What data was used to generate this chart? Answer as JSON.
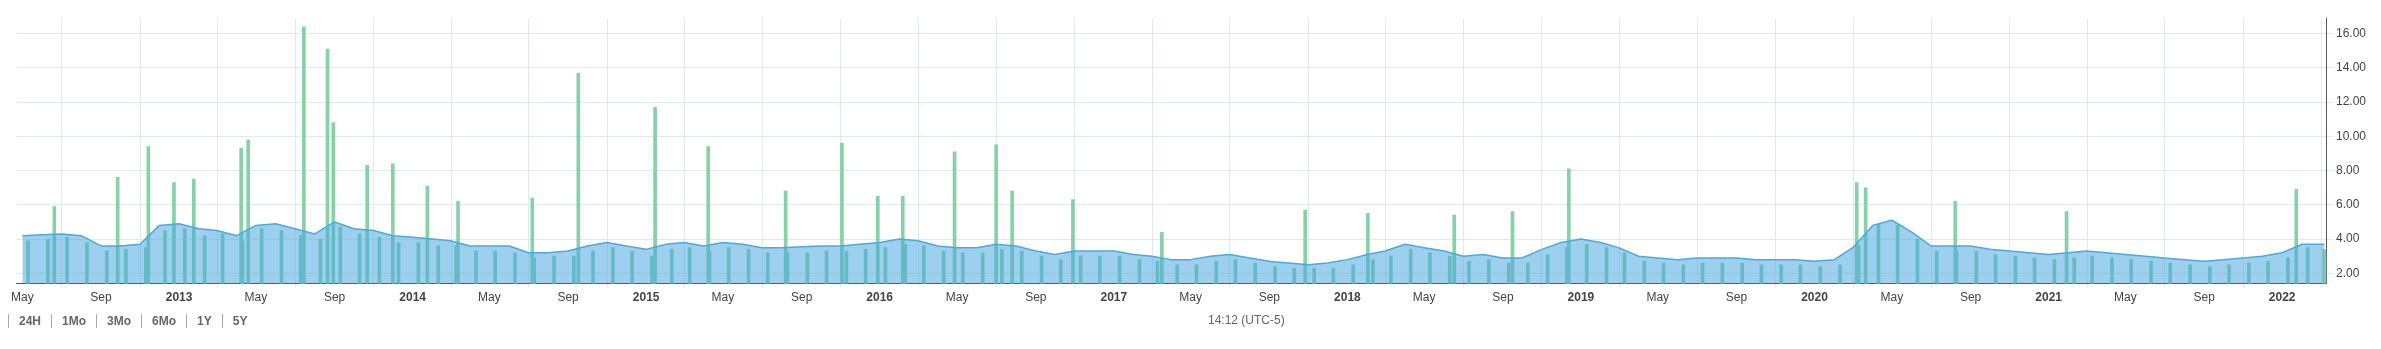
{
  "chart_data": {
    "type": "bar",
    "xlim": [
      "2012-04-22",
      "2022-03-12"
    ],
    "ylim": [
      1.4,
      16.9
    ],
    "xticks": [
      {
        "value": "2012-05-01",
        "label": "May"
      },
      {
        "value": "2012-09-01",
        "label": "Sep"
      },
      {
        "value": "2013-01-01",
        "label": "2013"
      },
      {
        "value": "2013-05-01",
        "label": "May"
      },
      {
        "value": "2013-09-01",
        "label": "Sep"
      },
      {
        "value": "2014-01-01",
        "label": "2014"
      },
      {
        "value": "2014-05-01",
        "label": "May"
      },
      {
        "value": "2014-09-01",
        "label": "Sep"
      },
      {
        "value": "2015-01-01",
        "label": "2015"
      },
      {
        "value": "2015-05-01",
        "label": "May"
      },
      {
        "value": "2015-09-01",
        "label": "Sep"
      },
      {
        "value": "2016-01-01",
        "label": "2016"
      },
      {
        "value": "2016-05-01",
        "label": "May"
      },
      {
        "value": "2016-09-01",
        "label": "Sep"
      },
      {
        "value": "2017-01-01",
        "label": "2017"
      },
      {
        "value": "2017-05-01",
        "label": "May"
      },
      {
        "value": "2017-09-01",
        "label": "Sep"
      },
      {
        "value": "2018-01-01",
        "label": "2018"
      },
      {
        "value": "2018-05-01",
        "label": "May"
      },
      {
        "value": "2018-09-01",
        "label": "Sep"
      },
      {
        "value": "2019-01-01",
        "label": "2019"
      },
      {
        "value": "2019-05-01",
        "label": "May"
      },
      {
        "value": "2019-09-01",
        "label": "Sep"
      },
      {
        "value": "2020-01-01",
        "label": "2020"
      },
      {
        "value": "2020-05-01",
        "label": "May"
      },
      {
        "value": "2020-09-01",
        "label": "Sep"
      },
      {
        "value": "2021-01-01",
        "label": "2021"
      },
      {
        "value": "2021-05-01",
        "label": "May"
      },
      {
        "value": "2021-09-01",
        "label": "Sep"
      },
      {
        "value": "2022-01-01",
        "label": "2022"
      }
    ],
    "yticks": [
      {
        "value": 2,
        "label": "2.00"
      },
      {
        "value": 4,
        "label": "4.00"
      },
      {
        "value": 6,
        "label": "6.00"
      },
      {
        "value": 8,
        "label": "8.00"
      },
      {
        "value": 10,
        "label": "10.00"
      },
      {
        "value": 12,
        "label": "12.00"
      },
      {
        "value": 14,
        "label": "14.00"
      },
      {
        "value": 16,
        "label": "16.00"
      }
    ],
    "grid": true,
    "legend": false,
    "series": [
      {
        "color": "#86d1a5",
        "x": [
          "2012-05-10",
          "2012-06-10",
          "2012-06-20",
          "2012-07-10",
          "2012-08-10",
          "2012-09-10",
          "2012-09-27",
          "2012-10-10",
          "2012-11-10",
          "2012-11-14",
          "2012-12-10",
          "2012-12-24",
          "2013-01-10",
          "2013-01-24",
          "2013-02-10",
          "2013-03-10",
          "2013-04-08",
          "2013-04-10",
          "2013-04-19",
          "2013-05-10",
          "2013-06-10",
          "2013-07-10",
          "2013-07-15",
          "2013-08-10",
          "2013-08-21",
          "2013-08-30",
          "2013-09-10",
          "2013-10-10",
          "2013-10-22",
          "2013-11-10",
          "2013-12-01",
          "2013-12-10",
          "2014-01-10",
          "2014-01-24",
          "2014-02-10",
          "2014-03-10",
          "2014-03-13",
          "2014-04-10",
          "2014-05-10",
          "2014-06-10",
          "2014-07-07",
          "2014-07-10",
          "2014-08-10",
          "2014-09-10",
          "2014-09-17",
          "2014-10-10",
          "2014-11-10",
          "2014-12-10",
          "2015-01-10",
          "2015-01-15",
          "2015-02-10",
          "2015-03-10",
          "2015-04-08",
          "2015-04-10",
          "2015-05-10",
          "2015-06-10",
          "2015-07-10",
          "2015-08-07",
          "2015-08-10",
          "2015-09-10",
          "2015-10-10",
          "2015-11-03",
          "2015-11-10",
          "2015-12-10",
          "2015-12-29",
          "2016-01-10",
          "2016-02-06",
          "2016-02-10",
          "2016-03-10",
          "2016-04-10",
          "2016-04-27",
          "2016-05-10",
          "2016-06-10",
          "2016-07-01",
          "2016-07-10",
          "2016-07-26",
          "2016-08-10",
          "2016-09-10",
          "2016-10-10",
          "2016-10-29",
          "2016-11-10",
          "2016-12-10",
          "2017-01-10",
          "2017-02-10",
          "2017-03-10",
          "2017-03-17",
          "2017-04-10",
          "2017-05-10",
          "2017-06-10",
          "2017-07-10",
          "2017-08-10",
          "2017-09-10",
          "2017-10-10",
          "2017-10-27",
          "2017-11-10",
          "2017-12-10",
          "2018-01-10",
          "2018-02-02",
          "2018-02-10",
          "2018-03-10",
          "2018-04-10",
          "2018-05-10",
          "2018-06-10",
          "2018-06-17",
          "2018-07-10",
          "2018-08-10",
          "2018-09-10",
          "2018-09-16",
          "2018-10-10",
          "2018-11-10",
          "2018-12-10",
          "2018-12-13",
          "2019-01-10",
          "2019-02-10",
          "2019-03-10",
          "2019-04-10",
          "2019-05-10",
          "2019-06-10",
          "2019-07-10",
          "2019-08-10",
          "2019-09-10",
          "2019-10-10",
          "2019-11-10",
          "2019-12-10",
          "2020-01-10",
          "2020-02-10",
          "2020-03-07",
          "2020-03-10",
          "2020-03-21",
          "2020-04-10",
          "2020-05-10",
          "2020-06-10",
          "2020-07-10",
          "2020-08-08",
          "2020-08-10",
          "2020-09-10",
          "2020-10-10",
          "2020-11-10",
          "2020-12-10",
          "2021-01-10",
          "2021-01-29",
          "2021-02-10",
          "2021-03-10",
          "2021-04-10",
          "2021-05-10",
          "2021-06-10",
          "2021-07-10",
          "2021-08-10",
          "2021-09-10",
          "2021-10-10",
          "2021-11-10",
          "2021-12-10",
          "2022-01-10",
          "2022-01-23",
          "2022-02-10",
          "2022-03-08"
        ],
        "values": [
          3.9,
          4.0,
          5.9,
          4.1,
          3.8,
          3.3,
          7.6,
          3.4,
          3.5,
          9.4,
          4.5,
          7.3,
          4.6,
          7.5,
          4.2,
          4.3,
          9.3,
          3.9,
          9.8,
          4.6,
          4.5,
          4.2,
          16.4,
          4.0,
          15.1,
          10.8,
          4.7,
          4.3,
          8.3,
          4.1,
          8.4,
          3.8,
          3.8,
          7.1,
          3.6,
          3.6,
          6.2,
          3.3,
          3.3,
          3.2,
          6.4,
          2.9,
          3.0,
          3.0,
          13.7,
          3.3,
          3.5,
          3.3,
          3.0,
          11.7,
          3.4,
          3.5,
          9.4,
          3.3,
          3.5,
          3.4,
          3.2,
          6.8,
          3.2,
          3.2,
          3.3,
          9.6,
          3.3,
          3.4,
          6.5,
          3.5,
          6.5,
          3.7,
          3.6,
          3.3,
          9.1,
          3.2,
          3.2,
          9.5,
          3.4,
          6.8,
          3.3,
          3.0,
          2.8,
          6.3,
          3.0,
          3.0,
          3.0,
          2.8,
          2.7,
          4.4,
          2.5,
          2.5,
          2.7,
          2.8,
          2.6,
          2.4,
          2.3,
          5.7,
          2.3,
          2.3,
          2.5,
          5.5,
          2.8,
          3.0,
          3.4,
          3.2,
          3.0,
          5.4,
          2.7,
          2.8,
          2.6,
          5.6,
          2.6,
          3.1,
          3.5,
          8.1,
          3.7,
          3.5,
          3.2,
          2.7,
          2.6,
          2.5,
          2.6,
          2.6,
          2.6,
          2.5,
          2.5,
          2.5,
          2.4,
          2.5,
          7.3,
          3.6,
          7.0,
          4.9,
          4.8,
          4.0,
          3.3,
          6.2,
          3.3,
          3.3,
          3.1,
          3.0,
          2.9,
          2.8,
          5.6,
          2.9,
          3.0,
          2.9,
          2.8,
          2.7,
          2.6,
          2.5,
          2.4,
          2.5,
          2.6,
          2.7,
          2.9,
          6.9,
          3.5,
          3.4
        ]
      },
      {
        "type": "area",
        "color": "#4aa9e0",
        "x": [
          "2012-05-01",
          "2012-06-01",
          "2012-07-01",
          "2012-08-01",
          "2012-09-01",
          "2012-10-01",
          "2012-11-01",
          "2012-12-01",
          "2013-01-01",
          "2013-02-01",
          "2013-03-01",
          "2013-04-01",
          "2013-05-01",
          "2013-06-01",
          "2013-07-01",
          "2013-08-01",
          "2013-09-01",
          "2013-10-01",
          "2013-11-01",
          "2013-12-01",
          "2014-01-01",
          "2014-02-01",
          "2014-03-01",
          "2014-04-01",
          "2014-05-01",
          "2014-06-01",
          "2014-07-01",
          "2014-08-01",
          "2014-09-01",
          "2014-10-01",
          "2014-11-01",
          "2014-12-01",
          "2015-01-01",
          "2015-02-01",
          "2015-03-01",
          "2015-04-01",
          "2015-05-01",
          "2015-06-01",
          "2015-07-01",
          "2015-08-01",
          "2015-09-01",
          "2015-10-01",
          "2015-11-01",
          "2015-12-01",
          "2016-01-01",
          "2016-02-01",
          "2016-03-01",
          "2016-04-01",
          "2016-05-01",
          "2016-06-01",
          "2016-07-01",
          "2016-08-01",
          "2016-09-01",
          "2016-10-01",
          "2016-11-01",
          "2016-12-01",
          "2017-01-01",
          "2017-02-01",
          "2017-03-01",
          "2017-04-01",
          "2017-05-01",
          "2017-06-01",
          "2017-07-01",
          "2017-08-01",
          "2017-09-01",
          "2017-10-01",
          "2017-11-01",
          "2017-12-01",
          "2018-01-01",
          "2018-02-01",
          "2018-03-01",
          "2018-04-01",
          "2018-05-01",
          "2018-06-01",
          "2018-07-01",
          "2018-08-01",
          "2018-09-01",
          "2018-10-01",
          "2018-11-01",
          "2018-12-01",
          "2019-01-01",
          "2019-02-01",
          "2019-03-01",
          "2019-04-01",
          "2019-05-01",
          "2019-06-01",
          "2019-07-01",
          "2019-08-01",
          "2019-09-01",
          "2019-10-01",
          "2019-11-01",
          "2019-12-01",
          "2020-01-01",
          "2020-02-01",
          "2020-03-01",
          "2020-04-01",
          "2020-05-01",
          "2020-06-01",
          "2020-07-01",
          "2020-08-01",
          "2020-09-01",
          "2020-10-01",
          "2020-11-01",
          "2020-12-01",
          "2021-01-01",
          "2021-02-01",
          "2021-03-01",
          "2021-04-01",
          "2021-05-01",
          "2021-06-01",
          "2021-07-01",
          "2021-08-01",
          "2021-09-01",
          "2021-10-01",
          "2021-11-01",
          "2021-12-01",
          "2022-01-01",
          "2022-02-01",
          "2022-03-08"
        ],
        "values": [
          4.2,
          4.25,
          4.3,
          4.2,
          3.6,
          3.6,
          3.7,
          4.8,
          4.9,
          4.6,
          4.5,
          4.2,
          4.8,
          4.9,
          4.6,
          4.3,
          5.0,
          4.6,
          4.5,
          4.2,
          4.1,
          4.0,
          3.9,
          3.6,
          3.6,
          3.6,
          3.2,
          3.2,
          3.3,
          3.6,
          3.8,
          3.6,
          3.4,
          3.7,
          3.8,
          3.6,
          3.8,
          3.7,
          3.5,
          3.5,
          3.55,
          3.6,
          3.6,
          3.7,
          3.8,
          4.0,
          3.9,
          3.6,
          3.5,
          3.5,
          3.7,
          3.6,
          3.3,
          3.1,
          3.3,
          3.3,
          3.3,
          3.1,
          3.0,
          2.8,
          2.8,
          3.0,
          3.1,
          2.9,
          2.7,
          2.6,
          2.5,
          2.6,
          2.8,
          3.1,
          3.3,
          3.7,
          3.5,
          3.3,
          3.0,
          3.1,
          2.9,
          2.9,
          3.4,
          3.8,
          4.0,
          3.8,
          3.5,
          3.0,
          2.9,
          2.8,
          2.9,
          2.9,
          2.9,
          2.8,
          2.8,
          2.8,
          2.7,
          2.8,
          3.5,
          4.8,
          5.1,
          4.4,
          3.6,
          3.6,
          3.6,
          3.4,
          3.3,
          3.2,
          3.1,
          3.2,
          3.3,
          3.2,
          3.1,
          3.0,
          2.9,
          2.8,
          2.7,
          2.8,
          2.9,
          3.0,
          3.2,
          3.7,
          3.7
        ]
      }
    ],
    "annotations": [
      "24H",
      "1Mo",
      "3Mo",
      "6Mo",
      "1Y",
      "5Y",
      "14:12 (UTC-5)"
    ]
  }
}
